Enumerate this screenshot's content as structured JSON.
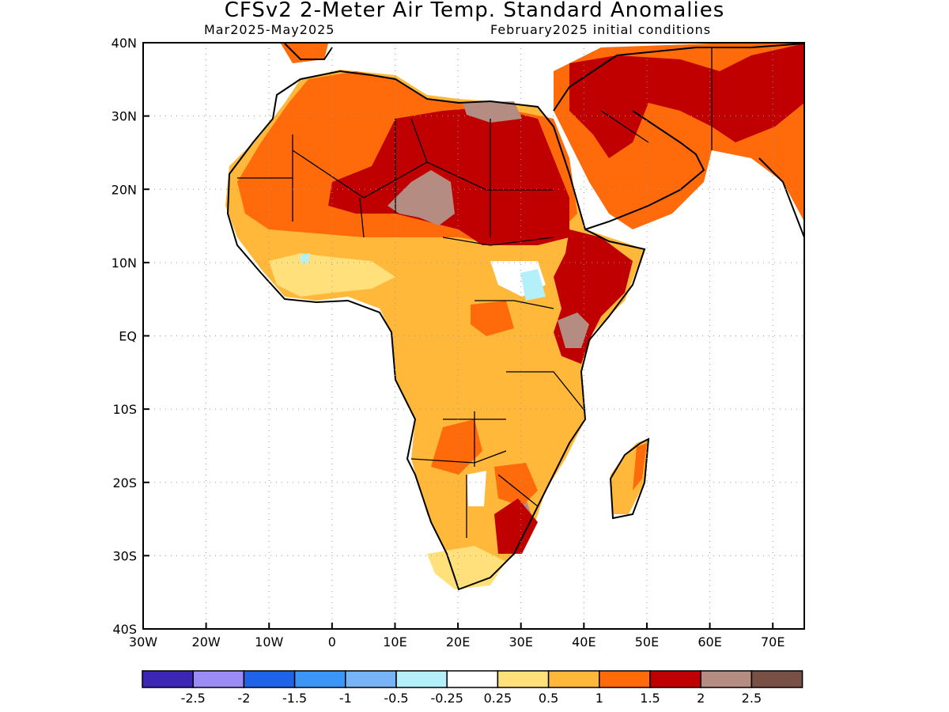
{
  "title": "CFSv2 2-Meter Air Temp. Standard Anomalies",
  "subtitle_left": "Mar2025-May2025",
  "subtitle_right": "February2025 initial conditions",
  "map": {
    "lon_range": [
      -30,
      75
    ],
    "lat_range": [
      -40,
      40
    ],
    "x_tick_labels": [
      "30W",
      "20W",
      "10W",
      "0",
      "10E",
      "20E",
      "30E",
      "40E",
      "50E",
      "60E",
      "70E"
    ],
    "x_tick_values": [
      -30,
      -20,
      -10,
      0,
      10,
      20,
      30,
      40,
      50,
      60,
      70
    ],
    "y_tick_labels": [
      "40N",
      "30N",
      "20N",
      "10N",
      "EQ",
      "10S",
      "20S",
      "30S",
      "40S"
    ],
    "y_tick_values": [
      40,
      30,
      20,
      10,
      0,
      -10,
      -20,
      -30,
      -40
    ],
    "grid": "dotted",
    "regions": [
      {
        "name": "Sahara north",
        "level": "1 to 1.5"
      },
      {
        "name": "Sahel",
        "level": "1.5 to 2"
      },
      {
        "name": "central Sahara",
        "level": "2 to 2.5"
      },
      {
        "name": "Arabian Peninsula",
        "level": "1 to 1.5"
      },
      {
        "name": "Horn of Africa",
        "level": "1.5 to 2"
      },
      {
        "name": "South Sudan",
        "level": "-0.5 to -0.25"
      },
      {
        "name": "southern Africa",
        "level": "0.5 to 1"
      },
      {
        "name": "Madagascar",
        "level": "0.5 to 1"
      }
    ]
  },
  "colorbar": {
    "colors": [
      "#3c26b4",
      "#9b8cf5",
      "#1f64e6",
      "#3c96f5",
      "#78b4f5",
      "#b4f0fa",
      "#ffffff",
      "#ffe07a",
      "#ffb83a",
      "#ff6a0a",
      "#c00000",
      "#b48c82",
      "#785046"
    ],
    "labels": [
      "-2.5",
      "-2",
      "-1.5",
      "-1",
      "-0.5",
      "-0.25",
      "0.25",
      "0.5",
      "1",
      "1.5",
      "2",
      "2.5"
    ]
  }
}
